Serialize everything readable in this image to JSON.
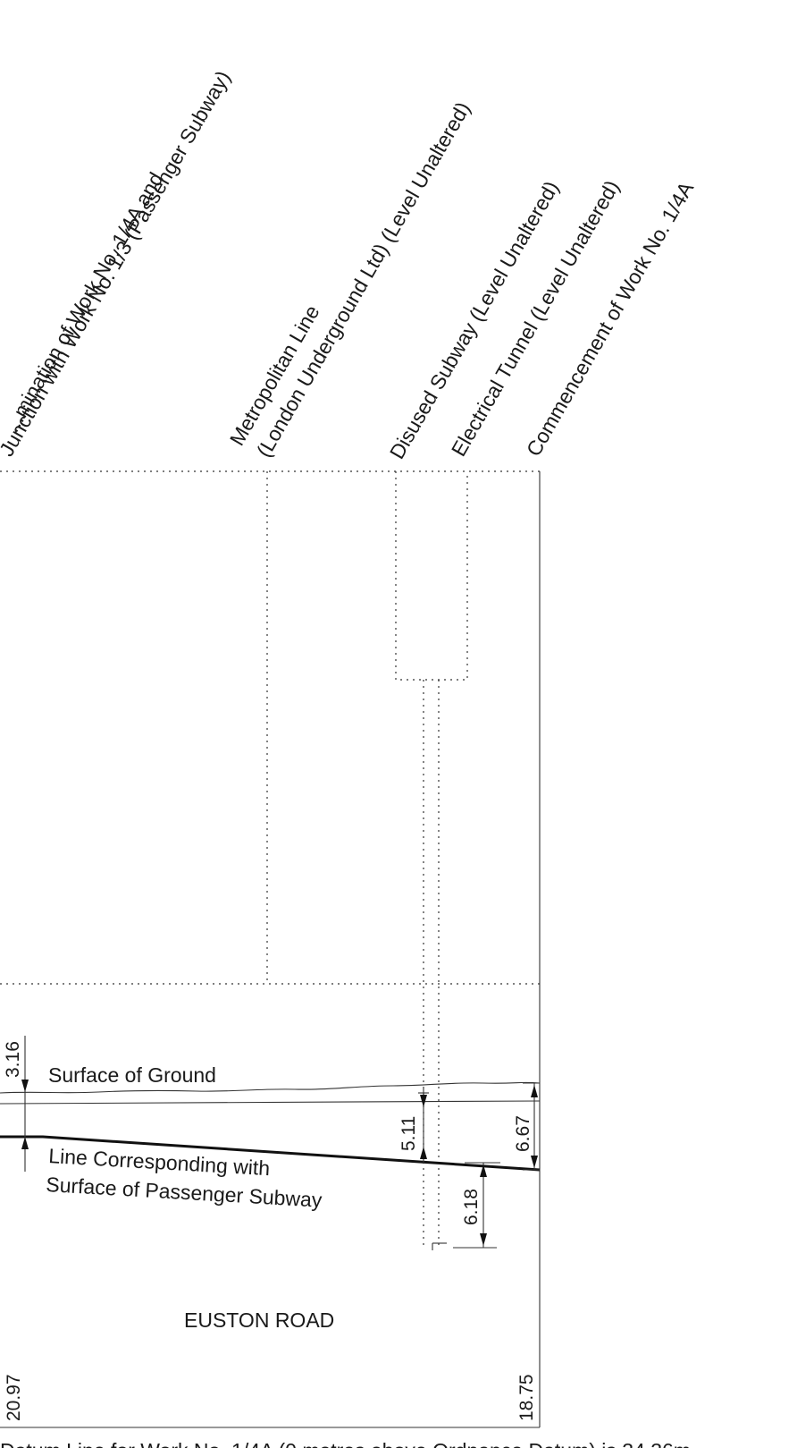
{
  "diagram": {
    "feature_labels": {
      "termination_line1": "...mination of Work No. 1/4A and",
      "termination_line2": "Junction with Work No. 1/3 (Passenger Subway)",
      "metropolitan_line1": "Metropolitan Line",
      "metropolitan_line2": "(London Underground Ltd) (Level Unaltered)",
      "disused_subway": "Disused Subway (Level Unaltered)",
      "electrical_tunnel": "Electrical Tunnel (Level Unaltered)",
      "commencement": "Commencement of Work No. 1/4A"
    },
    "surface_label": "Surface of Ground",
    "passenger_line1": "Line Corresponding with",
    "passenger_line2": "Surface of Passenger Subway",
    "road_label": "EUSTON ROAD",
    "dimensions": {
      "left_depth": "3.16",
      "mid_depth": "5.11",
      "lower_depth": "6.18",
      "right_depth": "6.67"
    },
    "levels": {
      "left": "20.97",
      "right": "18.75"
    },
    "datum_note": "Datum Line for Work No. 1/4A (0 metres above Ordnance Datum) is 34.36m"
  }
}
